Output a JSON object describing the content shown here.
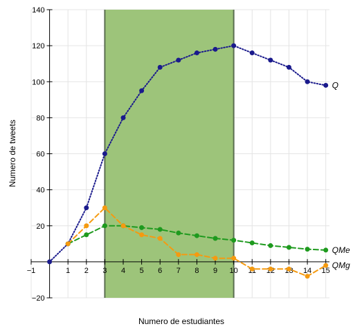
{
  "chart_data": {
    "type": "line",
    "xlabel": "Numero de estudiantes",
    "ylabel": "Numero de tweets",
    "xlim": [
      -1,
      15.2
    ],
    "ylim": [
      -20,
      140
    ],
    "x_ticks": [
      -1,
      1,
      2,
      3,
      4,
      5,
      6,
      7,
      8,
      9,
      10,
      11,
      12,
      13,
      14,
      15
    ],
    "y_ticks": [
      -20,
      20,
      40,
      60,
      80,
      100,
      120,
      140
    ],
    "grid": true,
    "highlight_region": {
      "x_start": 3,
      "x_end": 10,
      "color": "#9dc47a",
      "edge_color": "#5a6e50"
    },
    "series": [
      {
        "name": "Q",
        "color": "#1a1a8c",
        "dash": "dotted",
        "x": [
          0,
          1,
          2,
          3,
          4,
          5,
          6,
          7,
          8,
          9,
          10,
          11,
          12,
          13,
          14,
          15
        ],
        "values": [
          0,
          10,
          30,
          60,
          80,
          95,
          108,
          112,
          116,
          118,
          120,
          116,
          112,
          108,
          100,
          98
        ]
      },
      {
        "name": "QMe",
        "color": "#1e9a1e",
        "dash": "dashed",
        "x": [
          1,
          2,
          3,
          4,
          5,
          6,
          7,
          8,
          9,
          10,
          11,
          12,
          13,
          14,
          15
        ],
        "values": [
          10,
          15,
          20,
          20,
          19,
          18,
          16,
          14.5,
          13,
          12,
          10.5,
          9,
          8,
          7,
          6.5
        ]
      },
      {
        "name": "QMg",
        "color": "#f59a10",
        "dash": "dashed",
        "x": [
          1,
          2,
          3,
          4,
          5,
          6,
          7,
          8,
          9,
          10,
          11,
          12,
          13,
          14,
          15
        ],
        "values": [
          10,
          20,
          30,
          20,
          15,
          13,
          4,
          4,
          2,
          2,
          -4,
          -4,
          -4,
          -8,
          -2
        ]
      }
    ]
  }
}
